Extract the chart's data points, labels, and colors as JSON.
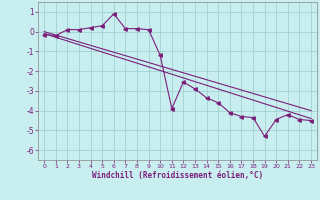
{
  "xlabel": "Windchill (Refroidissement éolien,°C)",
  "line_color": "#7B1F7B",
  "bg_color": "#C8EEF0",
  "grid_color": "#99CCCC",
  "xlim": [
    -0.5,
    23.5
  ],
  "ylim": [
    -6.5,
    1.5
  ],
  "yticks": [
    1,
    0,
    -1,
    -2,
    -3,
    -4,
    -5,
    -6
  ],
  "xticks": [
    0,
    1,
    2,
    3,
    4,
    5,
    6,
    7,
    8,
    9,
    10,
    11,
    12,
    13,
    14,
    15,
    16,
    17,
    18,
    19,
    20,
    21,
    22,
    23
  ],
  "data_x": [
    0,
    1,
    2,
    3,
    4,
    5,
    6,
    7,
    8,
    9,
    10,
    11,
    12,
    13,
    14,
    15,
    16,
    17,
    18,
    19,
    20,
    21,
    22,
    23
  ],
  "data_y": [
    -0.15,
    -0.2,
    0.1,
    0.1,
    0.2,
    0.3,
    0.9,
    0.15,
    0.15,
    0.1,
    -1.2,
    -3.9,
    -2.55,
    -2.9,
    -3.35,
    -3.6,
    -4.1,
    -4.3,
    -4.35,
    -5.3,
    -4.45,
    -4.2,
    -4.45,
    -4.5
  ],
  "trend1_x": [
    0,
    23
  ],
  "trend1_y": [
    -0.1,
    -4.4
  ],
  "trend2_x": [
    0,
    23
  ],
  "trend2_y": [
    0.0,
    -4.0
  ]
}
